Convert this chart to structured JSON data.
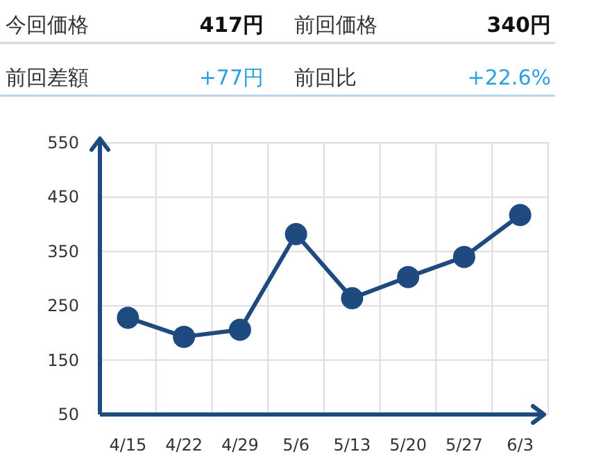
{
  "chart_data": [
    {
      "type": "other",
      "annotations": [
        "今回価格",
        "417円",
        "前回価格",
        "340円",
        "前回差額",
        "+77円",
        "前回比",
        "+22.6%"
      ]
    },
    {
      "type": "line",
      "categories": [
        "4/15",
        "4/22",
        "4/29",
        "5/6",
        "5/13",
        "5/20",
        "5/27",
        "6/3"
      ],
      "series": [
        {
          "color": "#1f4a80",
          "values": [
            228,
            193,
            206,
            382,
            264,
            303,
            340,
            417
          ]
        }
      ],
      "ylim": [
        50,
        550
      ],
      "yticks": [
        50,
        150,
        250,
        350,
        450,
        550
      ],
      "grid": true,
      "marker": "circle",
      "line_style": "solid"
    }
  ]
}
